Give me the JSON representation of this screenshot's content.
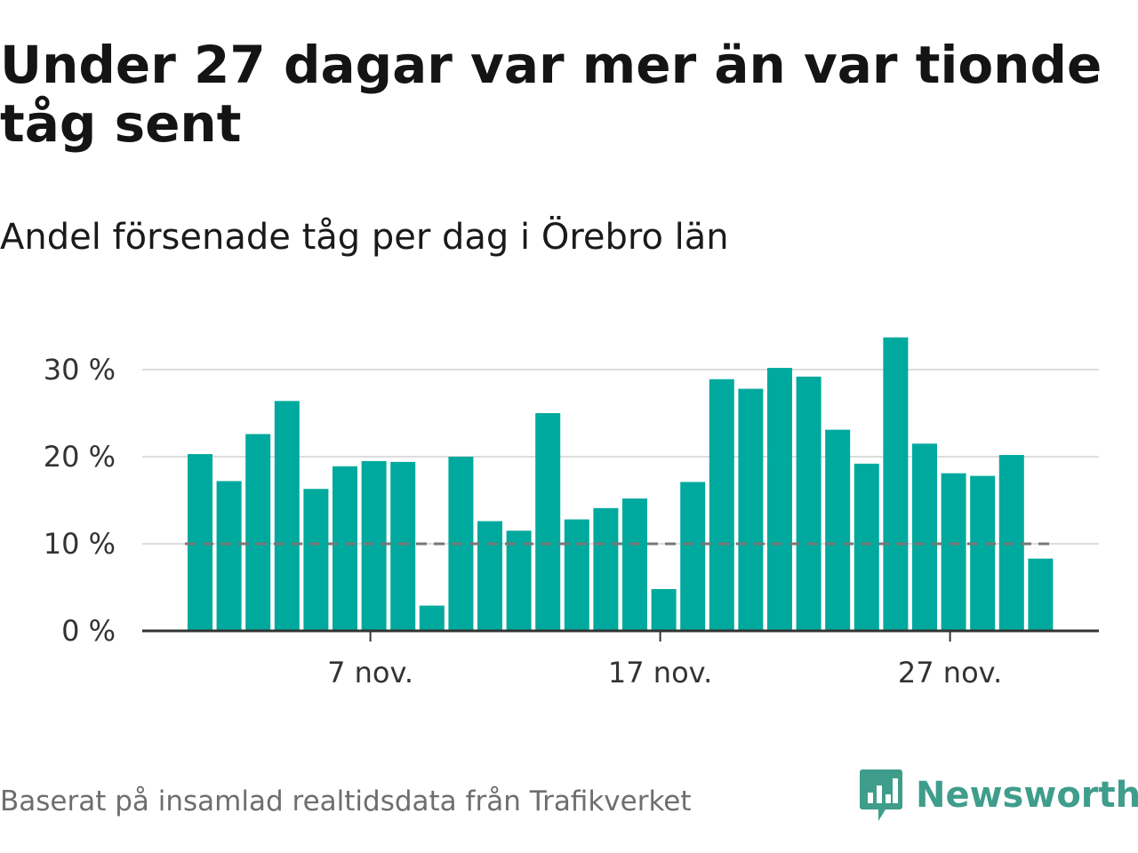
{
  "header": {
    "title": "Under 27 dagar var mer än var tionde tåg sent",
    "subtitle": "Andel försenade tåg per dag i Örebro län"
  },
  "footer": {
    "source": "Baserat på insamlad realtidsdata från Trafikverket",
    "brand": "Newsworthy"
  },
  "colors": {
    "bar": "#00a99d",
    "grid": "#dddddd",
    "threshold": "#777777",
    "axis": "#333333",
    "brand": "#3f9d8c"
  },
  "chart_data": {
    "type": "bar",
    "title": "Under 27 dagar var mer än var tionde tåg sent",
    "subtitle": "Andel försenade tåg per dag i Örebro län",
    "xlabel": "",
    "ylabel": "",
    "x_start_day": 1,
    "x_ticks": [
      {
        "day": 7,
        "label": "7 nov."
      },
      {
        "day": 17,
        "label": "17 nov."
      },
      {
        "day": 27,
        "label": "27 nov."
      }
    ],
    "y_ticks": [
      {
        "value": 0,
        "label": "0 %"
      },
      {
        "value": 10,
        "label": "10 %"
      },
      {
        "value": 20,
        "label": "20 %"
      },
      {
        "value": 30,
        "label": "30 %"
      }
    ],
    "ylim": [
      0,
      35
    ],
    "reference_line": {
      "value": 10,
      "style": "dashed"
    },
    "grid": true,
    "legend": "none",
    "values": [
      20.3,
      17.2,
      22.6,
      26.4,
      16.3,
      18.9,
      19.5,
      19.4,
      2.9,
      20.0,
      12.6,
      11.5,
      25.0,
      12.8,
      14.1,
      15.2,
      4.8,
      17.1,
      28.9,
      27.8,
      30.2,
      29.2,
      23.1,
      19.2,
      33.7,
      21.5,
      18.1,
      17.8,
      20.2,
      8.3
    ]
  }
}
